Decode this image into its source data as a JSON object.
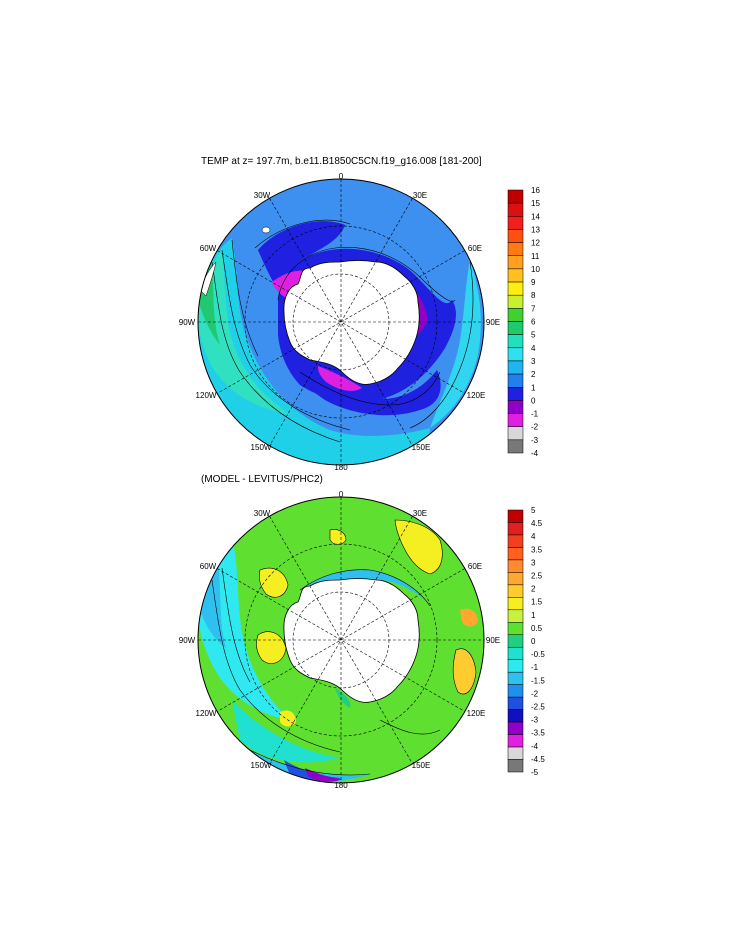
{
  "panels": [
    {
      "title": "TEMP at z= 197.7m, b.e11.B1850C5CN.f19_g16.008 [181-200]",
      "lon_labels": [
        "0",
        "30E",
        "60E",
        "90E",
        "120E",
        "150E",
        "180",
        "150W",
        "120W",
        "90W",
        "60W",
        "30W"
      ],
      "colorbar": {
        "labels": [
          "16",
          "15",
          "14",
          "13",
          "12",
          "11",
          "10",
          "9",
          "8",
          "7",
          "6",
          "5",
          "4",
          "3",
          "2",
          "1",
          "0",
          "-1",
          "-2",
          "-3",
          "-4"
        ],
        "colors": [
          "#c00000",
          "#dd1010",
          "#f02020",
          "#ff5010",
          "#ff7a10",
          "#ffa020",
          "#ffc020",
          "#ffef10",
          "#c8f030",
          "#40d030",
          "#20c870",
          "#20e0c0",
          "#30e0f0",
          "#20b4f0",
          "#2080f0",
          "#2020e0",
          "#9000c8",
          "#e020e0",
          "#d8d8d8",
          "#787878"
        ]
      }
    },
    {
      "title": "(MODEL - LEVITUS/PHC2)",
      "lon_labels": [
        "0",
        "30E",
        "60E",
        "90E",
        "120E",
        "150E",
        "180",
        "150W",
        "120W",
        "90W",
        "60W",
        "30W"
      ],
      "colorbar": {
        "labels": [
          "5",
          "4.5",
          "4",
          "3.5",
          "3",
          "2.5",
          "2",
          "1.5",
          "1",
          "0.5",
          "0",
          "-0.5",
          "-1",
          "-1.5",
          "-2",
          "-2.5",
          "-3",
          "-3.5",
          "-4",
          "-4.5",
          "-5"
        ],
        "colors": [
          "#c00000",
          "#e02020",
          "#f04020",
          "#ff6020",
          "#ff8a30",
          "#ffa830",
          "#ffcc30",
          "#f5ee20",
          "#c8f040",
          "#5fe030",
          "#20d080",
          "#20e0d0",
          "#30e8f0",
          "#30c0f0",
          "#2090f0",
          "#2050e0",
          "#1010c0",
          "#9000c8",
          "#e020e0",
          "#d8d8d8",
          "#787878"
        ]
      }
    }
  ]
}
